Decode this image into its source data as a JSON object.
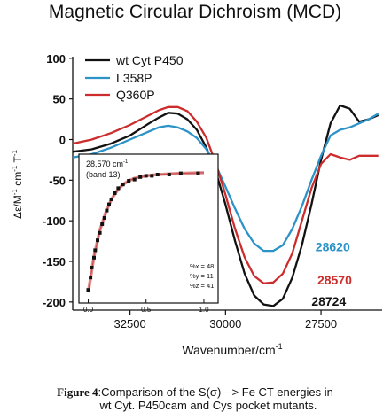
{
  "title": "Magnetic Circular Dichroism (MCD)",
  "caption": {
    "label": "Figure 4",
    "line1": ":Comparison of the S(σ) --> Fe CT energies in",
    "line2": "wt Cyt. P450cam and Cys pocket mutants."
  },
  "chart_data": [
    {
      "type": "line",
      "title": "Magnetic Circular Dichroism (MCD)",
      "xlabel": "Wavenumber/cm",
      "xlabel_sup": "-1",
      "ylabel": "Δε/M",
      "ylabel_tail": [
        " cm",
        " T"
      ],
      "xlim": [
        34000,
        25900
      ],
      "ylim": [
        -210,
        102
      ],
      "x_reversed": true,
      "xticks": [
        32500,
        30000,
        27500
      ],
      "yticks": [
        100,
        50,
        0,
        -50,
        -100,
        -150,
        -200
      ],
      "legend": "top-left",
      "series": [
        {
          "name": "wt Cyt P450",
          "color": "#111111",
          "x": [
            34000,
            33500,
            33000,
            32500,
            32000,
            31750,
            31500,
            31250,
            31000,
            30750,
            30500,
            30250,
            30000,
            29750,
            29500,
            29250,
            29000,
            28750,
            28500,
            28250,
            28000,
            27750,
            27500,
            27250,
            27000,
            26750,
            26500,
            26250,
            26000
          ],
          "y": [
            -15,
            -12,
            -5,
            5,
            20,
            27,
            33,
            32,
            25,
            12,
            -10,
            -40,
            -80,
            -125,
            -165,
            -192,
            -203,
            -205,
            -196,
            -170,
            -130,
            -80,
            -25,
            20,
            42,
            38,
            22,
            25,
            30
          ]
        },
        {
          "name": "L358P",
          "color": "#2b93c8",
          "x": [
            34000,
            33500,
            33000,
            32500,
            32000,
            31750,
            31500,
            31250,
            31000,
            30750,
            30500,
            30250,
            30000,
            29750,
            29500,
            29250,
            29000,
            28750,
            28500,
            28250,
            28000,
            27750,
            27500,
            27250,
            27000,
            26750,
            26500,
            26250,
            26000
          ],
          "y": [
            -22,
            -18,
            -10,
            0,
            10,
            15,
            17,
            15,
            10,
            2,
            -12,
            -32,
            -58,
            -85,
            -110,
            -128,
            -137,
            -137,
            -130,
            -110,
            -82,
            -50,
            -20,
            5,
            12,
            15,
            20,
            25,
            32
          ]
        },
        {
          "name": "Q360P",
          "color": "#cc2c2c",
          "x": [
            34000,
            33500,
            33000,
            32500,
            32000,
            31750,
            31500,
            31250,
            31000,
            30750,
            30500,
            30250,
            30000,
            29750,
            29500,
            29250,
            29000,
            28750,
            28500,
            28250,
            28000,
            27750,
            27500,
            27250,
            27000,
            26750,
            26500,
            26250,
            26000
          ],
          "y": [
            -5,
            0,
            8,
            18,
            30,
            36,
            40,
            40,
            35,
            22,
            2,
            -30,
            -68,
            -110,
            -145,
            -168,
            -177,
            -176,
            -165,
            -140,
            -100,
            -60,
            -30,
            -18,
            -22,
            -25,
            -20,
            -20,
            -20
          ]
        }
      ],
      "annotations": [
        {
          "text": "28620",
          "x": 28620,
          "y": -133,
          "color": "#2b93c8"
        },
        {
          "text": "28570",
          "x": 28570,
          "y": -174,
          "color": "#cc2c2c"
        },
        {
          "text": "28724",
          "x": 28724,
          "y": -200,
          "color": "#111111"
        }
      ]
    },
    {
      "type": "scatter",
      "inset": true,
      "label_line1": "28,570 cm",
      "label_line1_sup": "-1",
      "label_line2": "(band 13)",
      "xlim": [
        -0.05,
        1.1
      ],
      "ylim": [
        0,
        1
      ],
      "xticks": [
        0.0,
        0.5,
        1.0
      ],
      "xtick_labels": [
        "0.0",
        "0.5",
        "1.0"
      ],
      "stats": [
        "%x = 48",
        "%y = 11",
        "%z = 41"
      ],
      "points": {
        "x": [
          0.0,
          0.02,
          0.03,
          0.05,
          0.06,
          0.08,
          0.1,
          0.12,
          0.14,
          0.16,
          0.18,
          0.2,
          0.23,
          0.26,
          0.3,
          0.35,
          0.4,
          0.45,
          0.5,
          0.55,
          0.6,
          0.7,
          0.8,
          0.95
        ],
        "y": [
          0.02,
          0.12,
          0.2,
          0.28,
          0.34,
          0.42,
          0.48,
          0.55,
          0.6,
          0.66,
          0.71,
          0.75,
          0.8,
          0.84,
          0.87,
          0.9,
          0.91,
          0.93,
          0.94,
          0.94,
          0.95,
          0.95,
          0.96,
          0.96
        ]
      },
      "fit": {
        "x": [
          0.0,
          0.05,
          0.1,
          0.15,
          0.2,
          0.25,
          0.3,
          0.35,
          0.4,
          0.5,
          0.6,
          0.7,
          0.8,
          0.9,
          1.0
        ],
        "y": [
          0.0,
          0.29,
          0.5,
          0.64,
          0.75,
          0.82,
          0.87,
          0.9,
          0.92,
          0.94,
          0.95,
          0.955,
          0.96,
          0.962,
          0.965
        ]
      },
      "point_color": "#111111",
      "fit_color": "#e08a8a"
    }
  ]
}
